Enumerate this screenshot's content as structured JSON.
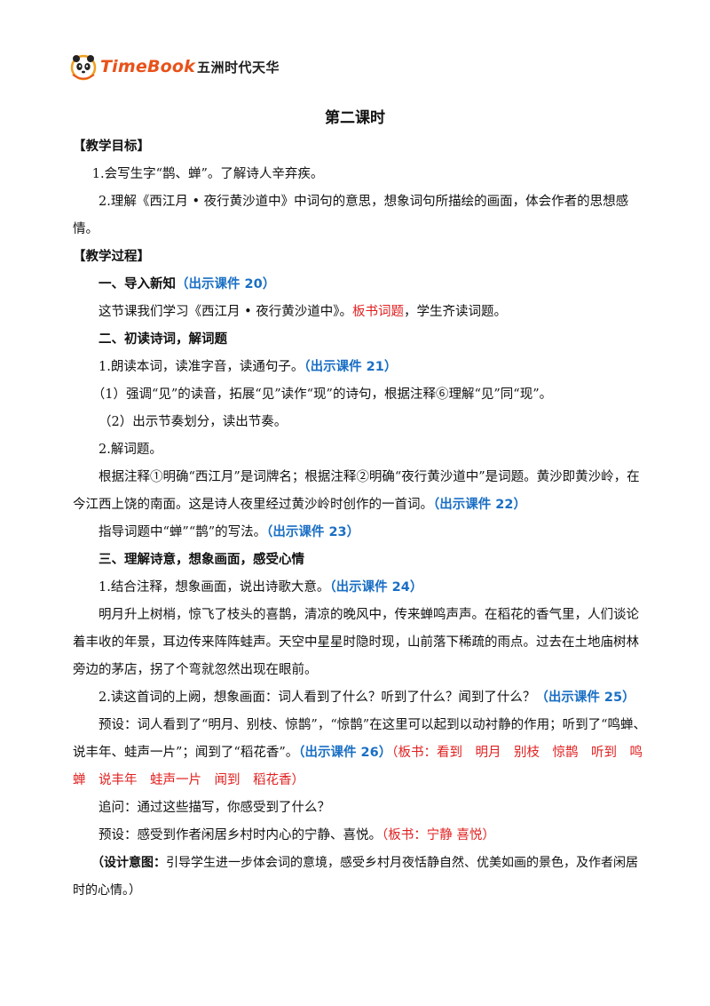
{
  "header": {
    "brand": "TimeBook",
    "brand_cn": "五洲时代天华",
    "logo_icon": "panda-mascot-icon"
  },
  "title": "第二课时",
  "goals": {
    "heading": "【教学目标】",
    "item1": "1.会写生字“鹊、蝉”。了解诗人辛弃疾。",
    "item2": "2.理解《西江月 • 夜行黄沙道中》中词句的意思，想象词句所描绘的画面，体会作者的思想感情。"
  },
  "process": {
    "heading": "【教学过程】",
    "s1": {
      "title": "一、导入新知",
      "ref": "（出示课件 20）",
      "p1_a": "这节课我们学习《西江月 • 夜行黄沙道中》。",
      "p1_red": "板书词题",
      "p1_b": "，学生齐读词题。"
    },
    "s2": {
      "title": "二、初读诗词，解词题",
      "p1": "1.朗读本词，读准字音，读通句子。",
      "p1_ref": "（出示课件 21）",
      "p2": "（1）强调“见”的读音，拓展“见”读作“现”的诗句，根据注释⑥理解“见”同“现”。",
      "p3": "（2）出示节奏划分，读出节奏。",
      "p4": "2.解词题。",
      "p5": "根据注释①明确“西江月”是词牌名；根据注释②明确“夜行黄沙道中”是词题。黄沙即黄沙岭，在今江西上饶的南面。这是诗人夜里经过黄沙岭时创作的一首词。",
      "p5_ref": "（出示课件 22）",
      "p6": "指导词题中“蝉”“鹊”的写法。",
      "p6_ref": "（出示课件 23）"
    },
    "s3": {
      "title": "三、理解诗意，想象画面，感受心情",
      "p1": "1.结合注释，想象画面，说出诗歌大意。",
      "p1_ref": "（出示课件 24）",
      "p2": "明月升上树梢，惊飞了枝头的喜鹊，清凉的晚风中，传来蝉鸣声声。在稻花的香气里，人们谈论着丰收的年景，耳边传来阵阵蛙声。天空中星星时隐时现，山前落下稀疏的雨点。过去在土地庙树林旁边的茅店，拐了个弯就忽然出现在眼前。",
      "p3": "2.读这首词的上阙，想象画面：词人看到了什么？听到了什么？闻到了什么？",
      "p3_ref": "（出示课件 25）",
      "p4": "预设：词人看到了“明月、别枝、惊鹊”，“惊鹊”在这里可以起到以动衬静的作用；听到了“鸣蝉、说丰年、蛙声一片”；闻到了“稻花香”。",
      "p4_ref": "（出示课件 26）",
      "p4_red": "（板书：看到　明月　别枝　惊鹊　听到　鸣蝉　说丰年　蛙声一片　闻到　稻花香）",
      "p5": "追问：通过这些描写，你感受到了什么？",
      "p6": "预设：感受到作者闲居乡村时内心的宁静、喜悦。",
      "p6_red": "（板书：宁静  喜悦）",
      "note_label": "（设计意图：",
      "note_text": "引导学生进一步体会词的意境，感受乡村月夜恬静自然、优美如画的景色，及作者闲居时的心情。）"
    }
  }
}
